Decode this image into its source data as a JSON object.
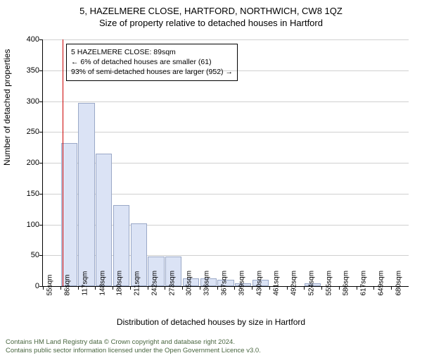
{
  "title_line1": "5, HAZELMERE CLOSE, HARTFORD, NORTHWICH, CW8 1QZ",
  "title_line2": "Size of property relative to detached houses in Hartford",
  "y_axis_label": "Number of detached properties",
  "x_axis_label": "Distribution of detached houses by size in Hartford",
  "annotation": {
    "line1": "5 HAZELMERE CLOSE: 89sqm",
    "line2": "← 6% of detached houses are smaller (61)",
    "line3": "93% of semi-detached houses are larger (952) →"
  },
  "reference_line_color": "#cc0000",
  "reference_x_category_index": 1,
  "chart": {
    "type": "histogram",
    "background_color": "#ffffff",
    "grid_color": "#d0d0d0",
    "bar_fill": "#dbe3f5",
    "bar_stroke": "#9aa8c7",
    "ylim": [
      0,
      400
    ],
    "ytick_step": 50,
    "categories": [
      "55sqm",
      "86sqm",
      "117sqm",
      "148sqm",
      "180sqm",
      "211sqm",
      "242sqm",
      "273sqm",
      "305sqm",
      "336sqm",
      "367sqm",
      "399sqm",
      "430sqm",
      "461sqm",
      "492sqm",
      "524sqm",
      "555sqm",
      "586sqm",
      "617sqm",
      "649sqm",
      "680sqm"
    ],
    "values": [
      0,
      232,
      297,
      215,
      132,
      102,
      48,
      48,
      13,
      13,
      10,
      5,
      10,
      0,
      0,
      5,
      0,
      0,
      0,
      0,
      0
    ],
    "label_fontsize": 12,
    "tick_fontsize": 10
  },
  "footer_line1": "Contains HM Land Registry data © Crown copyright and database right 2024.",
  "footer_line2": "Contains public sector information licensed under the Open Government Licence v3.0."
}
